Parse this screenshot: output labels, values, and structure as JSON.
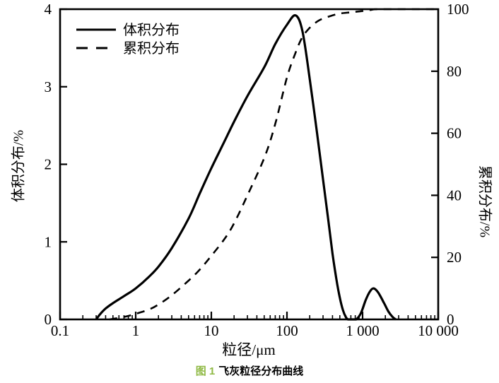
{
  "figure": {
    "x_axis_label": "粒径/μm",
    "y_left_label": "体积分布/%",
    "y_right_label": "累积分布/%",
    "caption_prefix": "图 1",
    "caption_text": "飞灰粒径分布曲线"
  },
  "colors": {
    "line": "#000000",
    "frame": "#000000",
    "caption_green": "#8fb944"
  },
  "chart_data": {
    "type": "line",
    "title": "",
    "xlabel": "粒径/μm",
    "ylabel_left": "体积分布/%",
    "ylabel_right": "累积分布/%",
    "x_scale": "log",
    "x_range": [
      0.1,
      10000
    ],
    "y_left_range": [
      0,
      4
    ],
    "y_right_range": [
      0,
      100
    ],
    "grid": false,
    "legend_position": "top-left-inside",
    "x_tick_labels": [
      "0.1",
      "1",
      "10",
      "100",
      "1 000",
      "10 000"
    ],
    "x_tick_values": [
      0.1,
      1,
      10,
      100,
      1000,
      10000
    ],
    "y_left_ticks": [
      "0",
      "1",
      "2",
      "3",
      "4"
    ],
    "y_left_tick_values": [
      0,
      1,
      2,
      3,
      4
    ],
    "y_right_ticks": [
      "0",
      "20",
      "40",
      "60",
      "80",
      "100"
    ],
    "y_right_tick_values": [
      0,
      20,
      40,
      60,
      80,
      100
    ],
    "legend": [
      {
        "label": "体积分布",
        "style": "solid"
      },
      {
        "label": "累积分布",
        "style": "dashed"
      }
    ],
    "series": [
      {
        "name": "体积分布",
        "axis": "left",
        "style": "solid",
        "points": [
          [
            0.3,
            0
          ],
          [
            0.34,
            0.07
          ],
          [
            0.4,
            0.14
          ],
          [
            0.5,
            0.21
          ],
          [
            0.7,
            0.3
          ],
          [
            1.0,
            0.4
          ],
          [
            1.5,
            0.55
          ],
          [
            2.0,
            0.68
          ],
          [
            3.0,
            0.92
          ],
          [
            5.0,
            1.3
          ],
          [
            7.0,
            1.62
          ],
          [
            10,
            1.95
          ],
          [
            15,
            2.3
          ],
          [
            20,
            2.55
          ],
          [
            30,
            2.88
          ],
          [
            50,
            3.25
          ],
          [
            70,
            3.55
          ],
          [
            100,
            3.8
          ],
          [
            130,
            3.92
          ],
          [
            160,
            3.72
          ],
          [
            200,
            3.1
          ],
          [
            250,
            2.4
          ],
          [
            300,
            1.8
          ],
          [
            350,
            1.3
          ],
          [
            400,
            0.85
          ],
          [
            450,
            0.52
          ],
          [
            500,
            0.28
          ],
          [
            550,
            0.12
          ],
          [
            600,
            0.03
          ],
          [
            640,
            0
          ],
          [
            700,
            0
          ],
          [
            820,
            0
          ],
          [
            950,
            0.08
          ],
          [
            1100,
            0.25
          ],
          [
            1250,
            0.36
          ],
          [
            1400,
            0.4
          ],
          [
            1600,
            0.35
          ],
          [
            1900,
            0.22
          ],
          [
            2200,
            0.1
          ],
          [
            2500,
            0.03
          ],
          [
            2750,
            0
          ]
        ]
      },
      {
        "name": "累积分布",
        "axis": "right",
        "style": "dashed",
        "points": [
          [
            0.45,
            0
          ],
          [
            0.7,
            0.8
          ],
          [
            1.0,
            1.8
          ],
          [
            1.5,
            3.2
          ],
          [
            2.0,
            4.8
          ],
          [
            3.0,
            7.8
          ],
          [
            5.0,
            12.5
          ],
          [
            7.0,
            16
          ],
          [
            10,
            20.5
          ],
          [
            15,
            26
          ],
          [
            20,
            31
          ],
          [
            30,
            40
          ],
          [
            50,
            52
          ],
          [
            70,
            63
          ],
          [
            100,
            78
          ],
          [
            130,
            86
          ],
          [
            160,
            91
          ],
          [
            200,
            94
          ],
          [
            250,
            96
          ],
          [
            300,
            97
          ],
          [
            400,
            98
          ],
          [
            500,
            98.6
          ],
          [
            700,
            99
          ],
          [
            1000,
            99.4
          ],
          [
            1300,
            99.8
          ],
          [
            1600,
            100
          ],
          [
            4000,
            100
          ],
          [
            9500,
            100
          ]
        ]
      }
    ]
  }
}
